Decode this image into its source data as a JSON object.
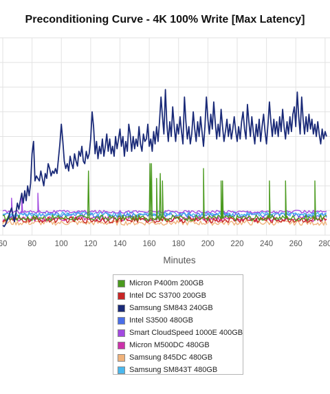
{
  "chart_data": {
    "type": "line",
    "title": "Preconditioning Curve - 4K 100% Write [Max Latency]",
    "xlabel": "Minutes",
    "ylabel": "",
    "x_ticks": [
      60,
      80,
      100,
      120,
      140,
      160,
      180,
      200,
      220,
      240,
      260,
      280
    ],
    "xlim": [
      60,
      281
    ],
    "ylim": [
      0,
      8
    ],
    "grid": true,
    "legend_position": "bottom",
    "series": [
      {
        "name": "Micron P400m 200GB",
        "color": "#4a9a1e",
        "baseline": 0.7,
        "jitter": 0.12,
        "spikes": [
          [
            118.5,
            2.6
          ],
          [
            160.5,
            2.9
          ],
          [
            161.5,
            2.9
          ],
          [
            165,
            2.3
          ],
          [
            167.5,
            2.5
          ],
          [
            169,
            2.2
          ],
          [
            197,
            2.7
          ],
          [
            209,
            2.2
          ],
          [
            210,
            2.2
          ],
          [
            242,
            2.2
          ],
          [
            253,
            2.2
          ],
          [
            273,
            2.2
          ]
        ]
      },
      {
        "name": "Intel DC S3700 200GB",
        "color": "#c82626",
        "baseline": 0.62,
        "jitter": 0.12,
        "spikes": []
      },
      {
        "name": "Samsung SM843 240GB",
        "color": "#1a2a78",
        "points": [
          [
            60,
            0.4
          ],
          [
            61,
            0.35
          ],
          [
            62,
            0.45
          ],
          [
            63,
            0.6
          ],
          [
            64,
            0.7
          ],
          [
            65,
            0.95
          ],
          [
            66,
            1.1
          ],
          [
            67,
            0.8
          ],
          [
            68,
            0.55
          ],
          [
            69,
            0.9
          ],
          [
            70,
            1.3
          ],
          [
            71,
            1.05
          ],
          [
            72,
            1.4
          ],
          [
            73,
            1.7
          ],
          [
            74,
            1.3
          ],
          [
            75,
            1.8
          ],
          [
            76,
            1.4
          ],
          [
            77,
            2.0
          ],
          [
            78,
            1.6
          ],
          [
            79,
            2.1
          ],
          [
            80,
            3.3
          ],
          [
            81,
            3.8
          ],
          [
            82,
            2.2
          ],
          [
            83,
            2.4
          ],
          [
            84,
            2.3
          ],
          [
            85,
            2.2
          ],
          [
            86,
            2.6
          ],
          [
            87,
            2.3
          ],
          [
            88,
            2.0
          ],
          [
            89,
            2.5
          ],
          [
            90,
            2.3
          ],
          [
            91,
            2.9
          ],
          [
            92,
            2.7
          ],
          [
            93,
            2.4
          ],
          [
            94,
            2.6
          ],
          [
            95,
            2.5
          ],
          [
            96,
            2.7
          ],
          [
            97,
            2.5
          ],
          [
            98,
            3.1
          ],
          [
            99,
            3.7
          ],
          [
            100,
            4.5
          ],
          [
            101,
            3.8
          ],
          [
            102,
            3.0
          ],
          [
            103,
            2.7
          ],
          [
            104,
            2.9
          ],
          [
            105,
            2.6
          ],
          [
            106,
            3.2
          ],
          [
            107,
            2.9
          ],
          [
            108,
            2.7
          ],
          [
            109,
            3.3
          ],
          [
            110,
            3.0
          ],
          [
            111,
            2.8
          ],
          [
            112,
            3.4
          ],
          [
            113,
            3.2
          ],
          [
            114,
            3.6
          ],
          [
            115,
            3.0
          ],
          [
            116,
            2.9
          ],
          [
            117,
            3.4
          ],
          [
            118,
            3.1
          ],
          [
            119,
            3.3
          ],
          [
            120,
            3.9
          ],
          [
            121,
            5.0
          ],
          [
            122,
            4.4
          ],
          [
            123,
            3.3
          ],
          [
            124,
            3.8
          ],
          [
            125,
            3.1
          ],
          [
            126,
            3.6
          ],
          [
            127,
            3.3
          ],
          [
            128,
            3.9
          ],
          [
            129,
            3.2
          ],
          [
            130,
            3.6
          ],
          [
            131,
            4.1
          ],
          [
            132,
            3.4
          ],
          [
            133,
            3.9
          ],
          [
            134,
            3.3
          ],
          [
            135,
            3.6
          ],
          [
            136,
            3.2
          ],
          [
            137,
            4.0
          ],
          [
            138,
            3.5
          ],
          [
            139,
            3.9
          ],
          [
            140,
            4.3
          ],
          [
            141,
            3.6
          ],
          [
            142,
            4.0
          ],
          [
            143,
            3.2
          ],
          [
            144,
            3.8
          ],
          [
            145,
            3.4
          ],
          [
            146,
            4.5
          ],
          [
            147,
            4.1
          ],
          [
            148,
            3.4
          ],
          [
            149,
            4.0
          ],
          [
            150,
            3.5
          ],
          [
            151,
            3.9
          ],
          [
            152,
            3.6
          ],
          [
            153,
            4.4
          ],
          [
            154,
            3.7
          ],
          [
            155,
            3.4
          ],
          [
            156,
            4.1
          ],
          [
            157,
            3.8
          ],
          [
            158,
            3.9
          ],
          [
            159,
            4.5
          ],
          [
            160,
            3.6
          ],
          [
            161,
            3.9
          ],
          [
            162,
            3.4
          ],
          [
            163,
            4.2
          ],
          [
            164,
            3.7
          ],
          [
            165,
            4.4
          ],
          [
            166,
            3.8
          ],
          [
            167,
            4.6
          ],
          [
            168,
            5.6
          ],
          [
            169,
            4.8
          ],
          [
            170,
            4.1
          ],
          [
            171,
            5.9
          ],
          [
            172,
            4.5
          ],
          [
            173,
            3.8
          ],
          [
            174,
            4.6
          ],
          [
            175,
            4.0
          ],
          [
            176,
            5.2
          ],
          [
            177,
            4.4
          ],
          [
            178,
            3.8
          ],
          [
            179,
            4.5
          ],
          [
            180,
            4.1
          ],
          [
            181,
            4.8
          ],
          [
            182,
            4.2
          ],
          [
            183,
            3.7
          ],
          [
            184,
            5.6
          ],
          [
            185,
            4.6
          ],
          [
            186,
            3.9
          ],
          [
            187,
            4.4
          ],
          [
            188,
            3.7
          ],
          [
            189,
            4.1
          ],
          [
            190,
            5.0
          ],
          [
            191,
            4.3
          ],
          [
            192,
            3.8
          ],
          [
            193,
            4.6
          ],
          [
            194,
            4.0
          ],
          [
            195,
            4.8
          ],
          [
            196,
            4.2
          ],
          [
            197,
            3.6
          ],
          [
            198,
            4.4
          ],
          [
            199,
            5.6
          ],
          [
            200,
            4.7
          ],
          [
            201,
            4.1
          ],
          [
            202,
            4.9
          ],
          [
            203,
            4.3
          ],
          [
            204,
            5.4
          ],
          [
            205,
            4.6
          ],
          [
            206,
            3.9
          ],
          [
            207,
            4.5
          ],
          [
            208,
            4.0
          ],
          [
            209,
            5.1
          ],
          [
            210,
            4.4
          ],
          [
            211,
            3.8
          ],
          [
            212,
            4.2
          ],
          [
            213,
            4.7
          ],
          [
            214,
            4.0
          ],
          [
            215,
            4.5
          ],
          [
            216,
            3.9
          ],
          [
            217,
            4.3
          ],
          [
            218,
            4.8
          ],
          [
            219,
            4.2
          ],
          [
            220,
            3.8
          ],
          [
            221,
            4.4
          ],
          [
            222,
            3.9
          ],
          [
            223,
            4.6
          ],
          [
            224,
            5.0
          ],
          [
            225,
            4.3
          ],
          [
            226,
            3.9
          ],
          [
            227,
            5.3
          ],
          [
            228,
            4.6
          ],
          [
            229,
            4.0
          ],
          [
            230,
            4.8
          ],
          [
            231,
            4.2
          ],
          [
            232,
            3.7
          ],
          [
            233,
            4.5
          ],
          [
            234,
            4.0
          ],
          [
            235,
            4.7
          ],
          [
            236,
            3.8
          ],
          [
            237,
            4.4
          ],
          [
            238,
            4.9
          ],
          [
            239,
            4.2
          ],
          [
            240,
            3.7
          ],
          [
            241,
            4.5
          ],
          [
            242,
            5.4
          ],
          [
            243,
            4.6
          ],
          [
            244,
            4.0
          ],
          [
            245,
            4.7
          ],
          [
            246,
            4.1
          ],
          [
            247,
            4.6
          ],
          [
            248,
            4.0
          ],
          [
            249,
            4.8
          ],
          [
            250,
            4.2
          ],
          [
            251,
            5.1
          ],
          [
            252,
            4.4
          ],
          [
            253,
            3.9
          ],
          [
            254,
            4.6
          ],
          [
            255,
            4.1
          ],
          [
            256,
            4.8
          ],
          [
            257,
            4.2
          ],
          [
            258,
            4.9
          ],
          [
            259,
            5.2
          ],
          [
            260,
            4.4
          ],
          [
            261,
            5.8
          ],
          [
            262,
            4.8
          ],
          [
            263,
            4.1
          ],
          [
            264,
            5.6
          ],
          [
            265,
            4.7
          ],
          [
            266,
            4.1
          ],
          [
            267,
            4.8
          ],
          [
            268,
            4.2
          ],
          [
            269,
            4.9
          ],
          [
            270,
            4.3
          ],
          [
            271,
            4.7
          ],
          [
            272,
            4.1
          ],
          [
            273,
            4.5
          ],
          [
            274,
            4.0
          ],
          [
            275,
            4.6
          ],
          [
            276,
            4.1
          ],
          [
            277,
            3.7
          ],
          [
            278,
            4.3
          ],
          [
            279,
            3.9
          ],
          [
            280,
            4.2
          ],
          [
            281,
            4.0
          ]
        ]
      },
      {
        "name": "Intel S3500 480GB",
        "color": "#4a6ee8",
        "baseline": 0.82,
        "jitter": 0.1,
        "spikes": []
      },
      {
        "name": "Smart CloudSpeed 1000E 400GB",
        "color": "#a24ae0",
        "baseline": 0.95,
        "jitter": 0.06,
        "spikes": [
          [
            66,
            1.5
          ],
          [
            73,
            1.6
          ],
          [
            84,
            1.7
          ]
        ]
      },
      {
        "name": "Micron M500DC 480GB",
        "color": "#cc33aa",
        "baseline": 0.66,
        "jitter": 0.1,
        "spikes": []
      },
      {
        "name": "Samsung 845DC 480GB",
        "color": "#f0b27a",
        "baseline": 0.5,
        "jitter": 0.1,
        "spikes": []
      },
      {
        "name": "Samsung SM843T 480GB",
        "color": "#4ab8ee",
        "baseline": 0.86,
        "jitter": 0.1,
        "spikes": []
      }
    ]
  }
}
